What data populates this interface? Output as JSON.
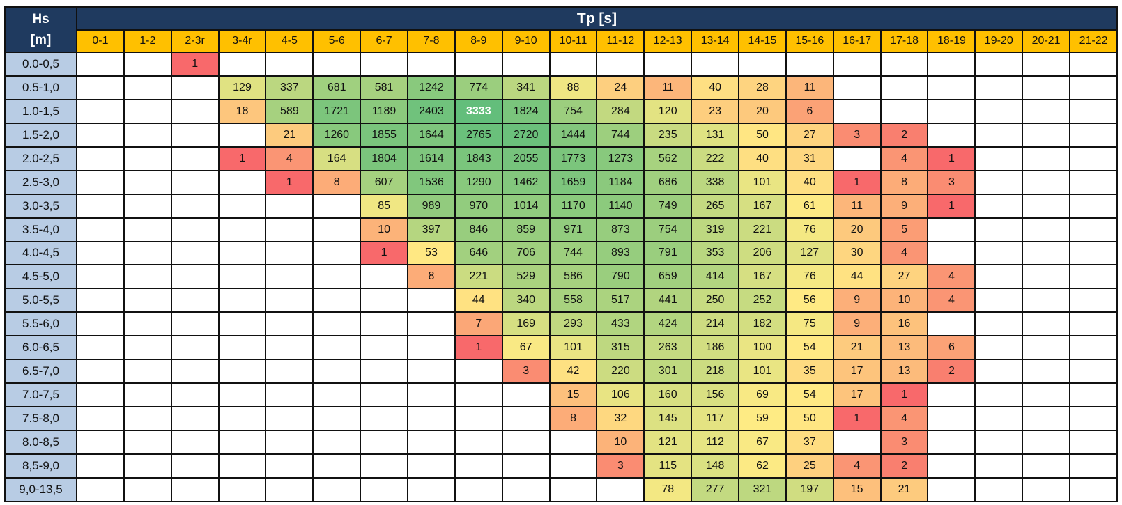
{
  "chart_data": {
    "type": "heatmap",
    "row_header_label": [
      "Hs",
      "[m]"
    ],
    "column_title": "Tp [s]",
    "columns": [
      "0-1",
      "1-2",
      "2-3r",
      "3-4r",
      "4-5",
      "5-6",
      "6-7",
      "7-8",
      "8-9",
      "9-10",
      "10-11",
      "11-12",
      "12-13",
      "13-14",
      "14-15",
      "15-16",
      "16-17",
      "17-18",
      "18-19",
      "19-20",
      "20-21",
      "21-22"
    ],
    "rows": [
      "0.0-0,5",
      "0.5-1,0",
      "1.0-1,5",
      "1.5-2,0",
      "2.0-2,5",
      "2.5-3,0",
      "3.0-3,5",
      "3.5-4,0",
      "4.0-4,5",
      "4.5-5,0",
      "5.0-5,5",
      "5.5-6,0",
      "6.0-6,5",
      "6.5-7,0",
      "7.0-7,5",
      "7.5-8,0",
      "8.0-8,5",
      "8,5-9,0",
      "9,0-13,5"
    ],
    "values": [
      [
        null,
        null,
        1,
        null,
        null,
        null,
        null,
        null,
        null,
        null,
        null,
        null,
        null,
        null,
        null,
        null,
        null,
        null,
        null,
        null,
        null,
        null
      ],
      [
        null,
        null,
        null,
        129,
        337,
        681,
        581,
        1242,
        774,
        341,
        88,
        24,
        11,
        40,
        28,
        11,
        null,
        null,
        null,
        null,
        null,
        null
      ],
      [
        null,
        null,
        null,
        18,
        589,
        1721,
        1189,
        2403,
        3333,
        1824,
        754,
        284,
        120,
        23,
        20,
        6,
        null,
        null,
        null,
        null,
        null,
        null
      ],
      [
        null,
        null,
        null,
        null,
        21,
        1260,
        1855,
        1644,
        2765,
        2720,
        1444,
        744,
        235,
        131,
        50,
        27,
        3,
        2,
        null,
        null,
        null,
        null
      ],
      [
        null,
        null,
        null,
        1,
        4,
        164,
        1804,
        1614,
        1843,
        2055,
        1773,
        1273,
        562,
        222,
        40,
        31,
        null,
        4,
        1,
        null,
        null,
        null
      ],
      [
        null,
        null,
        null,
        null,
        1,
        8,
        607,
        1536,
        1290,
        1462,
        1659,
        1184,
        686,
        338,
        101,
        40,
        1,
        8,
        3,
        null,
        null,
        null
      ],
      [
        null,
        null,
        null,
        null,
        null,
        null,
        85,
        989,
        970,
        1014,
        1170,
        1140,
        749,
        265,
        167,
        61,
        11,
        9,
        1,
        null,
        null,
        null
      ],
      [
        null,
        null,
        null,
        null,
        null,
        null,
        10,
        397,
        846,
        859,
        971,
        873,
        754,
        319,
        221,
        76,
        20,
        5,
        null,
        null,
        null,
        null
      ],
      [
        null,
        null,
        null,
        null,
        null,
        null,
        1,
        53,
        646,
        706,
        744,
        893,
        791,
        353,
        206,
        127,
        30,
        4,
        null,
        null,
        null,
        null
      ],
      [
        null,
        null,
        null,
        null,
        null,
        null,
        null,
        8,
        221,
        529,
        586,
        790,
        659,
        414,
        167,
        76,
        44,
        27,
        4,
        null,
        null,
        null
      ],
      [
        null,
        null,
        null,
        null,
        null,
        null,
        null,
        null,
        44,
        340,
        558,
        517,
        441,
        250,
        252,
        56,
        9,
        10,
        4,
        null,
        null,
        null
      ],
      [
        null,
        null,
        null,
        null,
        null,
        null,
        null,
        null,
        7,
        169,
        293,
        433,
        424,
        214,
        182,
        75,
        9,
        16,
        null,
        null,
        null,
        null
      ],
      [
        null,
        null,
        null,
        null,
        null,
        null,
        null,
        null,
        1,
        67,
        101,
        315,
        263,
        186,
        100,
        54,
        21,
        13,
        6,
        null,
        null,
        null
      ],
      [
        null,
        null,
        null,
        null,
        null,
        null,
        null,
        null,
        null,
        3,
        42,
        220,
        301,
        218,
        101,
        35,
        17,
        13,
        2,
        null,
        null,
        null
      ],
      [
        null,
        null,
        null,
        null,
        null,
        null,
        null,
        null,
        null,
        null,
        15,
        106,
        160,
        156,
        69,
        54,
        17,
        1,
        null,
        null,
        null,
        null
      ],
      [
        null,
        null,
        null,
        null,
        null,
        null,
        null,
        null,
        null,
        null,
        8,
        32,
        145,
        117,
        59,
        50,
        1,
        4,
        null,
        null,
        null,
        null
      ],
      [
        null,
        null,
        null,
        null,
        null,
        null,
        null,
        null,
        null,
        null,
        null,
        10,
        121,
        112,
        67,
        37,
        null,
        3,
        null,
        null,
        null,
        null
      ],
      [
        null,
        null,
        null,
        null,
        null,
        null,
        null,
        null,
        null,
        null,
        null,
        3,
        115,
        148,
        62,
        25,
        4,
        2,
        null,
        null,
        null,
        null
      ],
      [
        null,
        null,
        null,
        null,
        null,
        null,
        null,
        null,
        null,
        null,
        null,
        null,
        78,
        277,
        321,
        197,
        15,
        21,
        null,
        null,
        null,
        null
      ]
    ],
    "colors": {
      "header_dark": "#1f3a5f",
      "column_header": "#ffc000",
      "row_header": "#b8cce4",
      "scale_low": "#f8696b",
      "scale_mid": "#ffeb84",
      "scale_high": "#63be7b"
    }
  }
}
